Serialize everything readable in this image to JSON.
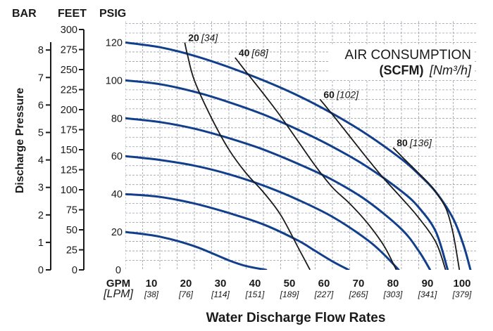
{
  "chart_data": {
    "type": "line",
    "header": {
      "bar": "BAR",
      "feet": "FEET",
      "psig": "PSIG"
    },
    "ylabel": "Discharge Pressure",
    "xlabel": "Water Discharge Flow Rates",
    "x_unit_labels": {
      "gpm": "GPM",
      "lpm": "[LPM]"
    },
    "xlim": [
      0,
      100
    ],
    "ylim": [
      0,
      125
    ],
    "x_ticks": [
      {
        "gpm": "10",
        "lpm": "[38]"
      },
      {
        "gpm": "20",
        "lpm": "[76]"
      },
      {
        "gpm": "30",
        "lpm": "[114]"
      },
      {
        "gpm": "40",
        "lpm": "[151]"
      },
      {
        "gpm": "50",
        "lpm": "[189]"
      },
      {
        "gpm": "60",
        "lpm": "[227]"
      },
      {
        "gpm": "70",
        "lpm": "[265]"
      },
      {
        "gpm": "80",
        "lpm": "[303]"
      },
      {
        "gpm": "90",
        "lpm": "[341]"
      },
      {
        "gpm": "100",
        "lpm": "[379]"
      }
    ],
    "x_origin_label": "0",
    "psig_ticks": [
      "20",
      "40",
      "60",
      "80",
      "100",
      "120"
    ],
    "feet_ticks": [
      "0",
      "25",
      "50",
      "75",
      "100",
      "125",
      "150",
      "175",
      "200",
      "225",
      "250",
      "275",
      "300"
    ],
    "bar_ticks": [
      "0",
      "1",
      "2",
      "3",
      "4",
      "5",
      "6",
      "7",
      "8"
    ],
    "annotation": {
      "line1": "AIR CONSUMPTION",
      "line2_bold": "(SCFM)",
      "line2_italic": "[Nm³/h]"
    },
    "pressure_curves": [
      {
        "x": [
          0,
          10,
          20,
          30,
          35,
          40.8
        ],
        "y": [
          20,
          17.5,
          12.5,
          5,
          2,
          0
        ]
      },
      {
        "x": [
          0,
          10,
          20,
          30,
          40,
          50,
          55,
          60,
          64.7
        ],
        "y": [
          40,
          38.5,
          35,
          30,
          24,
          15.5,
          10,
          4.5,
          0
        ]
      },
      {
        "x": [
          0,
          10,
          20,
          30,
          40,
          50,
          60,
          70,
          75,
          79.2
        ],
        "y": [
          60,
          58,
          55,
          50.5,
          44.5,
          37,
          28,
          16,
          8,
          0
        ]
      },
      {
        "x": [
          0,
          10,
          20,
          30,
          40,
          50,
          60,
          70,
          80,
          85,
          88.3
        ],
        "y": [
          80,
          78,
          74.5,
          69.5,
          63.5,
          56,
          47.5,
          36.5,
          21.5,
          10,
          0
        ]
      },
      {
        "x": [
          0,
          10,
          20,
          30,
          40,
          50,
          60,
          70,
          80,
          85,
          90,
          93.4
        ],
        "y": [
          100,
          98,
          94,
          88.5,
          82,
          74,
          65,
          54.5,
          41.5,
          33,
          20,
          0
        ]
      },
      {
        "x": [
          0,
          10,
          20,
          30,
          40,
          50,
          60,
          70,
          80,
          85,
          90,
          95,
          98,
          100
        ],
        "y": [
          120,
          117.5,
          113,
          107,
          100,
          92,
          82.5,
          71.5,
          58.5,
          50.5,
          41,
          27,
          13,
          0
        ]
      }
    ],
    "air_lines": [
      {
        "label": "20",
        "label_it": "[34]",
        "x": [
          17.2,
          18,
          20,
          25,
          30,
          35,
          40,
          45,
          50,
          53.5
        ],
        "y": [
          120,
          113.5,
          100,
          80,
          63.5,
          51,
          41,
          29,
          12,
          0
        ]
      },
      {
        "label": "40",
        "label_it": "[68]",
        "x": [
          31.8,
          35,
          40,
          45,
          50,
          55,
          60,
          65,
          70,
          75,
          78.5
        ],
        "y": [
          112,
          104.5,
          93,
          81,
          68,
          55,
          43.5,
          35,
          25,
          12.5,
          0
        ]
      },
      {
        "label": "60",
        "label_it": "[102]",
        "x": [
          56.4,
          60,
          65,
          70,
          75,
          80,
          85,
          90,
          92.8
        ],
        "y": [
          90,
          82,
          70.5,
          59,
          48,
          38,
          27.5,
          14.5,
          0
        ]
      },
      {
        "label": "80",
        "label_it": "[136]",
        "x": [
          77.6,
          80,
          85,
          88,
          90,
          93,
          95,
          96.8
        ],
        "y": [
          64.5,
          60,
          51,
          45.5,
          41,
          32,
          19,
          0
        ]
      }
    ],
    "grid": true,
    "colors": {
      "pressure_curve": "#123f8c",
      "air_line": "#1a1a1a",
      "grid": "#9aa0a8"
    }
  }
}
